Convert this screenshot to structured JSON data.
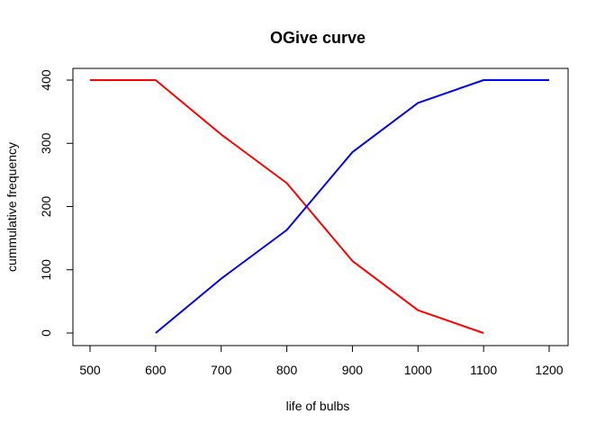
{
  "chart_data": {
    "type": "line",
    "title": "OGive curve",
    "xlabel": "life of bulbs",
    "ylabel": "cummulative frequency",
    "xlim": [
      500,
      1200
    ],
    "ylim": [
      0,
      400
    ],
    "x_ticks": [
      500,
      600,
      700,
      800,
      900,
      1000,
      1100,
      1200
    ],
    "y_ticks": [
      0,
      100,
      200,
      300,
      400
    ],
    "grid": false,
    "series": [
      {
        "color": "#ff0000",
        "points": [
          {
            "x": 500,
            "y": 400
          },
          {
            "x": 600,
            "y": 400
          },
          {
            "x": 700,
            "y": 314
          },
          {
            "x": 800,
            "y": 237
          },
          {
            "x": 900,
            "y": 114
          },
          {
            "x": 1000,
            "y": 36
          },
          {
            "x": 1100,
            "y": 0
          }
        ]
      },
      {
        "color": "#0000ff",
        "points": [
          {
            "x": 600,
            "y": 0
          },
          {
            "x": 700,
            "y": 86
          },
          {
            "x": 800,
            "y": 163
          },
          {
            "x": 900,
            "y": 286
          },
          {
            "x": 1000,
            "y": 364
          },
          {
            "x": 1100,
            "y": 400
          },
          {
            "x": 1200,
            "y": 400
          }
        ]
      }
    ]
  }
}
